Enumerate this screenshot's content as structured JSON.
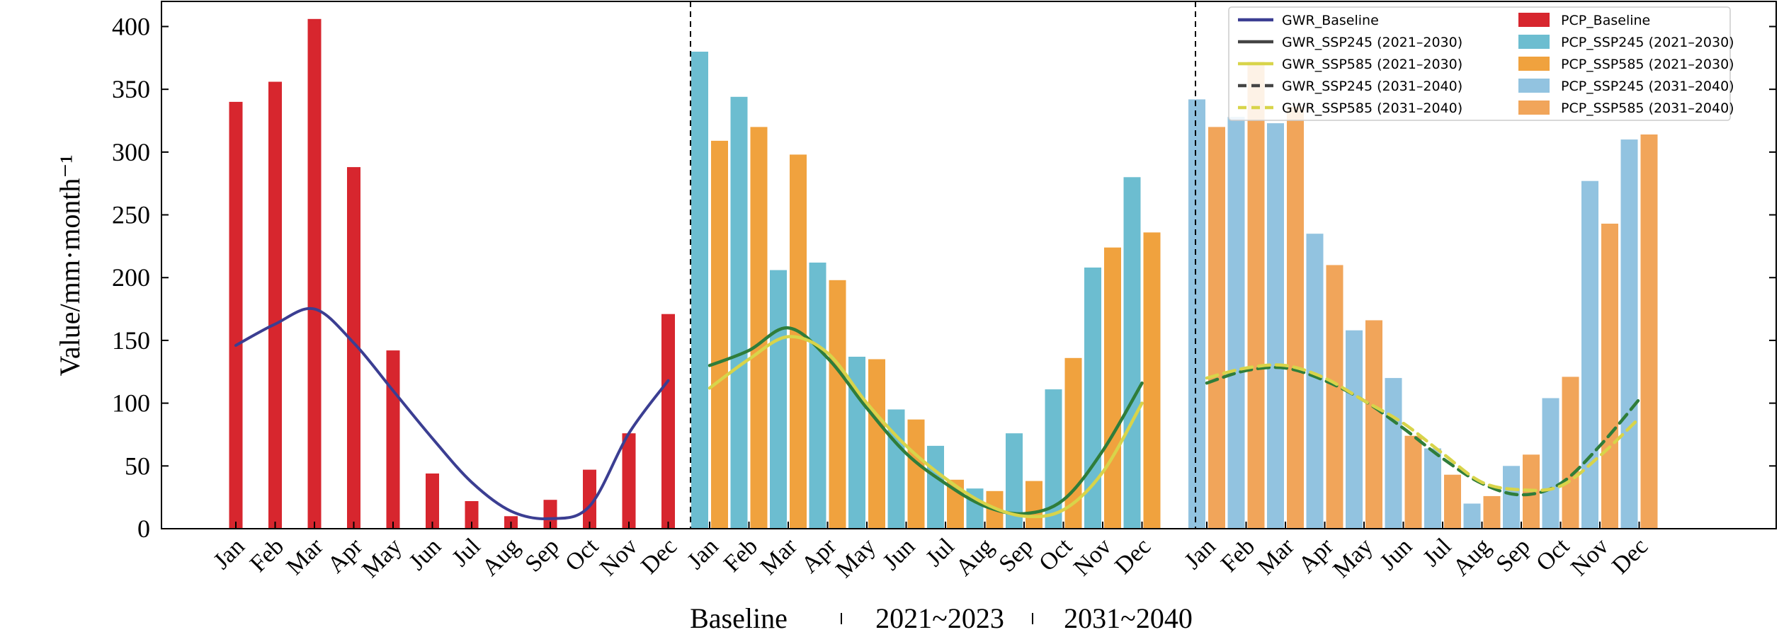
{
  "chart_data": {
    "type": "bar",
    "ylabel": "Value/mm·month⁻¹",
    "ylim": [
      0,
      420
    ],
    "yticks": [
      0,
      50,
      100,
      150,
      200,
      250,
      300,
      350,
      400
    ],
    "months": [
      "Jan",
      "Feb",
      "Mar",
      "Apr",
      "May",
      "Jun",
      "Jul",
      "Aug",
      "Sep",
      "Oct",
      "Nov",
      "Dec"
    ],
    "period_labels": [
      "Baseline",
      "2021~2023",
      "2031~2040"
    ],
    "legend_placement": "top-right",
    "colors": {
      "pcp_baseline": "#d7262e",
      "pcp_ssp245_2030": "#6cbdd0",
      "pcp_ssp585_2030": "#f0a23e",
      "pcp_ssp245_2040": "#92c3e0",
      "pcp_ssp585_2040": "#f1a55a",
      "gwr_baseline": "#3b3e92",
      "gwr_ssp245_2030": "#2f7d3a",
      "gwr_ssp585_2030": "#d8d44a",
      "gwr_ssp245_2040": "#2f7d3a",
      "gwr_ssp585_2040": "#d8d44a"
    },
    "legend": [
      {
        "label": "GWR_Baseline",
        "kind": "line",
        "style": "solid",
        "color": "#3b3e92"
      },
      {
        "label": "GWR_SSP245 (2021–2030)",
        "kind": "line",
        "style": "solid",
        "color": "#444444"
      },
      {
        "label": "GWR_SSP585 (2021–2030)",
        "kind": "line",
        "style": "solid",
        "color": "#d8d44a"
      },
      {
        "label": "GWR_SSP245 (2031–2040)",
        "kind": "line",
        "style": "dashed",
        "color": "#444444"
      },
      {
        "label": "GWR_SSP585 (2031–2040)",
        "kind": "line",
        "style": "dashed",
        "color": "#d8d44a"
      },
      {
        "label": "PCP_Baseline",
        "kind": "bar",
        "color": "#d7262e"
      },
      {
        "label": "PCP_SSP245 (2021–2030)",
        "kind": "bar",
        "color": "#6cbdd0"
      },
      {
        "label": "PCP_SSP585 (2021–2030)",
        "kind": "bar",
        "color": "#f0a23e"
      },
      {
        "label": "PCP_SSP245 (2031–2040)",
        "kind": "bar",
        "color": "#92c3e0"
      },
      {
        "label": "PCP_SSP585 (2031–2040)",
        "kind": "bar",
        "color": "#f1a55a"
      }
    ],
    "series": [
      {
        "name": "PCP_Baseline",
        "kind": "bar",
        "period": 0,
        "values": [
          340,
          356,
          406,
          288,
          142,
          44,
          22,
          10,
          23,
          47,
          76,
          171
        ]
      },
      {
        "name": "PCP_SSP245 (2021–2030)",
        "kind": "bar",
        "period": 1,
        "values": [
          380,
          344,
          206,
          212,
          137,
          95,
          66,
          32,
          76,
          111,
          208,
          280
        ]
      },
      {
        "name": "PCP_SSP585 (2021–2030)",
        "kind": "bar",
        "period": 1,
        "values": [
          309,
          320,
          298,
          198,
          135,
          87,
          39,
          30,
          38,
          136,
          224,
          236
        ]
      },
      {
        "name": "PCP_SSP245 (2031–2040)",
        "kind": "bar",
        "period": 2,
        "values": [
          342,
          328,
          323,
          235,
          158,
          120,
          64,
          20,
          50,
          104,
          277,
          310
        ]
      },
      {
        "name": "PCP_SSP585 (2031–2040)",
        "kind": "bar",
        "period": 2,
        "values": [
          320,
          372,
          336,
          210,
          166,
          74,
          43,
          26,
          59,
          121,
          243,
          314
        ]
      },
      {
        "name": "GWR_Baseline",
        "kind": "line",
        "period": 0,
        "values": [
          146,
          163,
          175,
          148,
          110,
          72,
          37,
          14,
          8,
          18,
          76,
          118
        ]
      },
      {
        "name": "GWR_SSP245 (2021–2030)",
        "kind": "line",
        "period": 1,
        "values": [
          130,
          142,
          160,
          136,
          96,
          60,
          36,
          18,
          12,
          23,
          62,
          116
        ]
      },
      {
        "name": "GWR_SSP585 (2021–2030)",
        "kind": "line",
        "period": 1,
        "values": [
          112,
          135,
          153,
          140,
          100,
          66,
          40,
          20,
          10,
          15,
          45,
          100
        ]
      },
      {
        "name": "GWR_SSP245 (2031–2040)",
        "kind": "line",
        "period": 2,
        "values": [
          116,
          126,
          128,
          118,
          102,
          80,
          56,
          36,
          27,
          36,
          66,
          103
        ]
      },
      {
        "name": "GWR_SSP585 (2031–2040)",
        "kind": "line",
        "period": 2,
        "values": [
          120,
          128,
          130,
          120,
          102,
          84,
          60,
          37,
          31,
          34,
          58,
          88
        ]
      }
    ]
  }
}
